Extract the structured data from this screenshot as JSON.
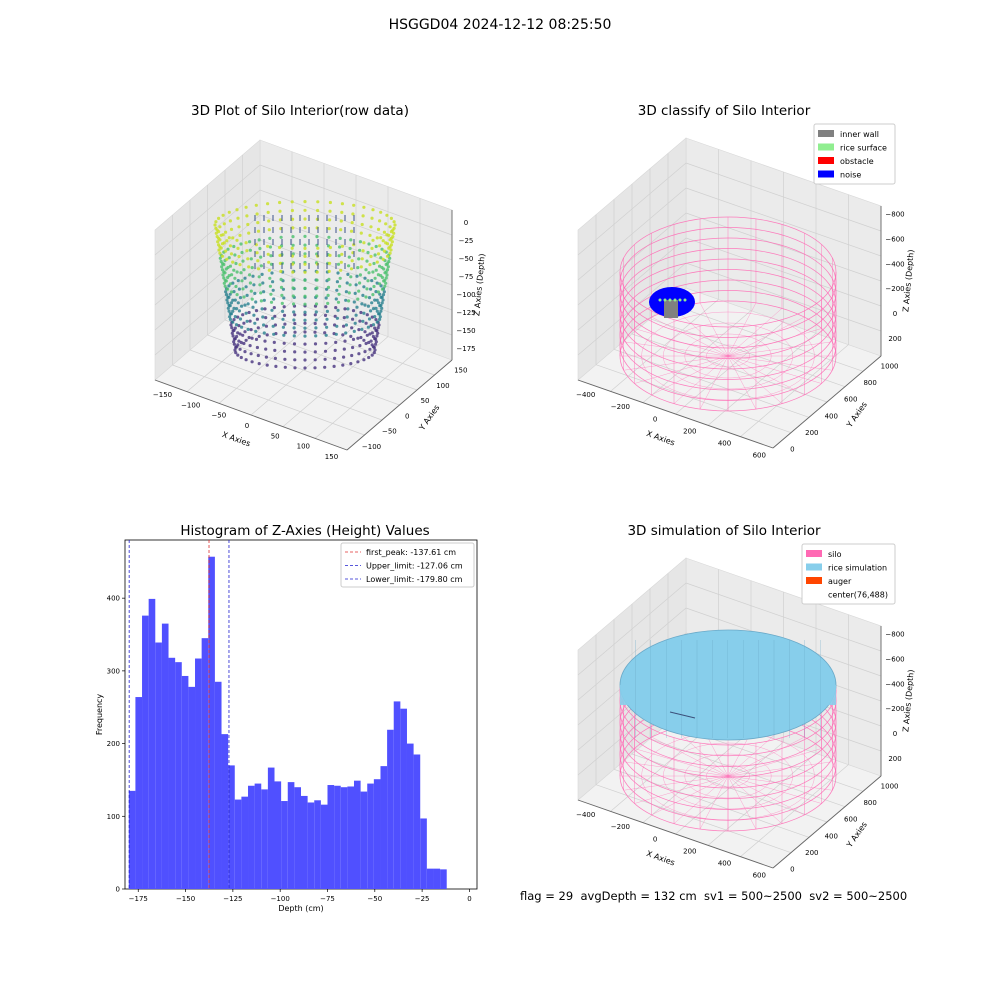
{
  "suptitle": "HSGGD04 2024-12-12 08:25:50",
  "footer": "flag = 29  avgDepth = 132 cm  sv1 = 500~2500  sv2 = 500~2500",
  "colors": {
    "hist_bar": "#5050ff",
    "first_peak": "#e03030",
    "limits": "#2020d0",
    "silo": "#ff69b4",
    "rice_simulation": "#87ceeb",
    "auger": "#ff4500",
    "inner_wall": "#808080",
    "rice_surface": "#90ee90",
    "obstacle": "#ff0000",
    "noise": "#0000ff",
    "viridis_low": "#440154",
    "viridis_high": "#fde725"
  },
  "chart_data": [
    {
      "type": "scatter",
      "title": "3D Plot of Silo Interior(row data)",
      "xlabel": "X Axies",
      "ylabel": "Y Axies",
      "zlabel": "Z Axies (Depth)",
      "xticks": [
        "−150",
        "−100",
        "−50",
        "0",
        "50",
        "100",
        "150"
      ],
      "yticks": [
        "−100",
        "−50",
        "0",
        "50",
        "100",
        "150"
      ],
      "zticks": [
        "0",
        "−25",
        "−50",
        "−75",
        "−100",
        "−125",
        "−150",
        "−175"
      ],
      "colormap": "viridis"
    },
    {
      "type": "scatter",
      "title": "3D classify of Silo Interior",
      "xlabel": "X Axies",
      "ylabel": "Y Axies",
      "zlabel": "Z Axies (Depth)",
      "xticks": [
        "−400",
        "−200",
        "0",
        "200",
        "400",
        "600"
      ],
      "yticks": [
        "0",
        "200",
        "400",
        "600",
        "800",
        "1000"
      ],
      "zticks": [
        "200",
        "0",
        "−200",
        "−400",
        "−600",
        "−800"
      ],
      "legend": [
        "inner wall",
        "rice surface",
        "obstacle",
        "noise"
      ],
      "legend_loc": "upper right"
    },
    {
      "type": "bar",
      "title": "Histogram of Z-Axies (Height) Values",
      "xlabel": "Depth (cm)",
      "ylabel": "Frequency",
      "xlim": [
        -182,
        4
      ],
      "ylim": [
        0,
        480
      ],
      "xticks": [
        "−175",
        "−150",
        "−125",
        "−100",
        "−75",
        "−50",
        "−25",
        "0"
      ],
      "yticks": [
        "0",
        "100",
        "200",
        "300",
        "400"
      ],
      "bin_start": -180,
      "bin_width": 3.5,
      "values": [
        135,
        264,
        376,
        399,
        339,
        365,
        318,
        312,
        293,
        278,
        317,
        345,
        457,
        285,
        213,
        170,
        123,
        127,
        142,
        145,
        137,
        167,
        148,
        121,
        147,
        140,
        128,
        119,
        122,
        116,
        143,
        142,
        140,
        141,
        149,
        134,
        145,
        151,
        169,
        219,
        258,
        248,
        200,
        185,
        97,
        28,
        28,
        27
      ],
      "lines": [
        {
          "label": "first_peak: -137.61 cm",
          "x": -137.61
        },
        {
          "label": "Upper_limit: -127.06 cm",
          "x": -127.06
        },
        {
          "label": "Lower_limit: -179.80 cm",
          "x": -179.8
        }
      ],
      "legend_loc": "upper right"
    },
    {
      "type": "surface",
      "title": "3D simulation of Silo Interior",
      "xlabel": "X Axies",
      "ylabel": "Y Axies",
      "zlabel": "Z Axies (Depth)",
      "xticks": [
        "−400",
        "−200",
        "0",
        "200",
        "400",
        "600"
      ],
      "yticks": [
        "0",
        "200",
        "400",
        "600",
        "800",
        "1000"
      ],
      "zticks": [
        "200",
        "0",
        "−200",
        "−400",
        "−600",
        "−800"
      ],
      "legend": [
        "silo",
        "rice simulation",
        "auger",
        "center(76,488)"
      ],
      "legend_loc": "upper right"
    }
  ]
}
